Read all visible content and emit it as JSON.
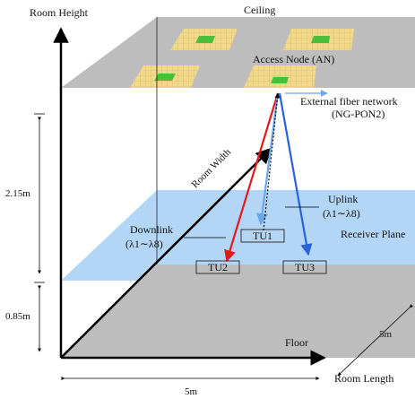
{
  "labels": {
    "room_height": "Room Height",
    "ceiling": "Ceiling",
    "access_node": "Access Node (AN)",
    "external_network_line1": "External fiber network",
    "external_network_line2": "(NG-PON2)",
    "room_width": "Room Width",
    "uplink": "Uplink",
    "uplink_wavelengths": "(λ1∼λ8)",
    "downlink": "Downlink",
    "downlink_wavelengths": "(λ1∼λ8)",
    "receiver_plane": "Receiver Plane",
    "floor": "Floor",
    "room_length": "Room Length",
    "dim_215": "2.15m",
    "dim_085": "0.85m",
    "dim_width_5m": "5m",
    "dim_length_5m": "5m"
  },
  "terminals": {
    "tu1": "TU1",
    "tu2": "TU2",
    "tu3": "TU3"
  },
  "colors": {
    "plane_gray": "#bdbdbd",
    "receiver_blue": "#b3d6f6",
    "led_yellow": "#f2d98a",
    "led_green": "#4cbf3a",
    "downlink_red": "#e11a1a",
    "uplink_blue": "#6aa7e6",
    "tu3_blue": "#2b62d9"
  }
}
